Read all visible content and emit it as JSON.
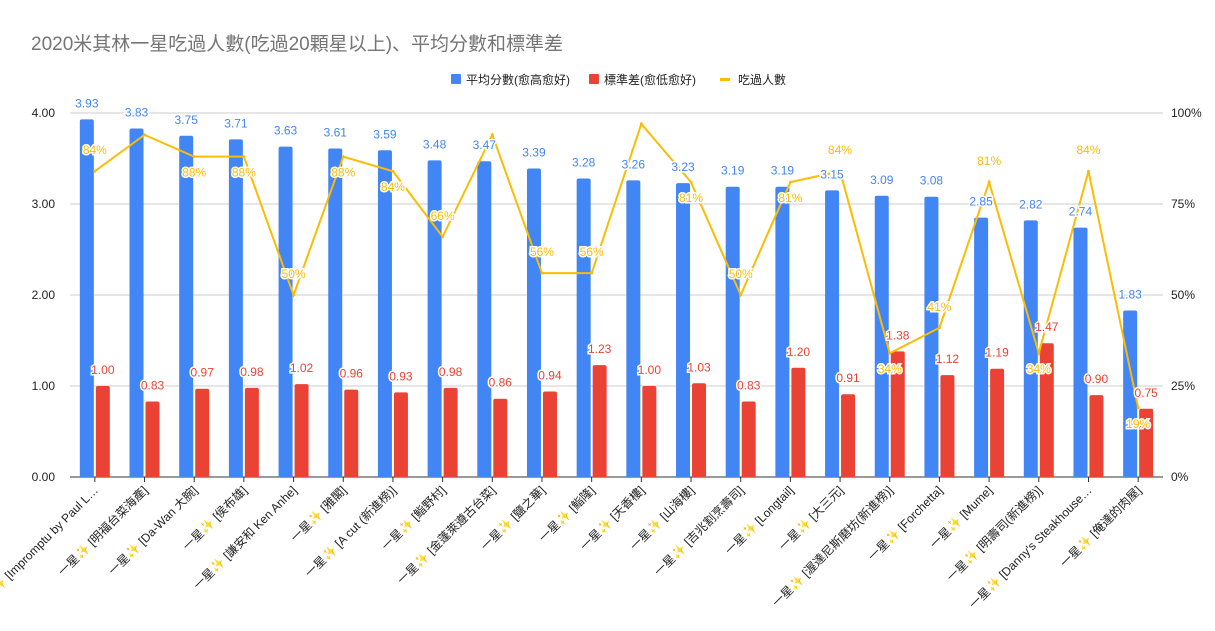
{
  "chart_data": {
    "type": "bar+line",
    "title": "2020米其林一星吃過人數(吃過20顆星以上)、平均分數和標準差",
    "legend_position": "top-right",
    "categories": [
      "一星✨ [Impromptu by Paul L…",
      "一星✨ [明福台菜海產]",
      "一星✨ [Da-Wan 大腕]",
      "一星✨ [侯布雄]",
      "一星✨ [謙安和 Ken Anhe]",
      "一星✨ [雅閣]",
      "一星✨ [A cut (新進榜)]",
      "一星✨ [鮨野村]",
      "一星✨ [金蓬萊遵古台菜]",
      "一星✨ [鹽之華]",
      "一星✨ [鮨隆]",
      "一星✨ [天香樓]",
      "一星✨ [山海樓]",
      "一星✨ [吉兆割烹壽司]",
      "一星✨ [Longtail]",
      "一星✨ [大三元]",
      "一星✨ [渥達尼斯磨坊(新進榜)]",
      "一星✨ [Forchetta]",
      "一星✨ [Mume]",
      "一星✨ [明壽司(新進榜)]",
      "一星✨ [Danny's Steakhouse…",
      "一星✨ [俺達的肉屋]"
    ],
    "series": [
      {
        "name": "平均分數(愈高愈好)",
        "type": "bar",
        "axis": "left",
        "color": "#4285f4",
        "values": [
          3.93,
          3.83,
          3.75,
          3.71,
          3.63,
          3.61,
          3.59,
          3.48,
          3.47,
          3.39,
          3.28,
          3.26,
          3.23,
          3.19,
          3.19,
          3.15,
          3.09,
          3.08,
          2.85,
          2.82,
          2.74,
          1.83
        ],
        "labels": [
          "3.93",
          "3.83",
          "3.75",
          "3.71",
          "3.63",
          "3.61",
          "3.59",
          "3.48",
          "3.47",
          "3.39",
          "3.28",
          "3.26",
          "3.23",
          "3.19",
          "3.19",
          "3.15",
          "3.09",
          "3.08",
          "2.85",
          "2.82",
          "2.74",
          "1.83"
        ]
      },
      {
        "name": "標準差(愈低愈好)",
        "type": "bar",
        "axis": "left",
        "color": "#ea4335",
        "values": [
          1.0,
          0.83,
          0.97,
          0.98,
          1.02,
          0.96,
          0.93,
          0.98,
          0.86,
          0.94,
          1.23,
          1.0,
          1.03,
          0.83,
          1.2,
          0.91,
          1.38,
          1.12,
          1.19,
          1.47,
          0.9,
          0.75
        ],
        "labels": [
          "1.00",
          "0.83",
          "0.97",
          "0.98",
          "1.02",
          "0.96",
          "0.93",
          "0.98",
          "0.86",
          "0.94",
          "1.23",
          "1.00",
          "1.03",
          "0.83",
          "1.20",
          "0.91",
          "1.38",
          "1.12",
          "1.19",
          "1.47",
          "0.90",
          "0.75"
        ]
      },
      {
        "name": "吃過人數",
        "type": "line",
        "axis": "right",
        "color": "#fbbc04",
        "values": [
          84,
          94,
          88,
          88,
          50,
          88,
          84,
          66,
          94,
          56,
          56,
          97,
          81,
          50,
          81,
          84,
          34,
          41,
          81,
          34,
          84,
          19
        ],
        "labels": [
          "84%",
          null,
          "88%",
          "88%",
          "50%",
          "88%",
          "84%",
          "66%",
          null,
          "56%",
          "56%",
          null,
          "81%",
          "50%",
          "81%",
          "84%",
          "34%",
          "41%",
          "81%",
          "34%",
          "84%",
          "19%"
        ]
      }
    ],
    "y_left": {
      "range": [
        0,
        4
      ],
      "ticks": [
        "0.00",
        "1.00",
        "2.00",
        "3.00",
        "4.00"
      ]
    },
    "y_right": {
      "range": [
        0,
        100
      ],
      "ticks": [
        "0%",
        "25%",
        "50%",
        "75%",
        "100%"
      ]
    },
    "grid": true
  }
}
